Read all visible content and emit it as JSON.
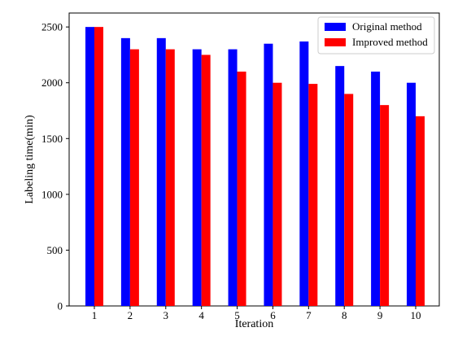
{
  "chart_data": {
    "type": "bar",
    "categories": [
      "1",
      "2",
      "3",
      "4",
      "5",
      "6",
      "7",
      "8",
      "9",
      "10"
    ],
    "series": [
      {
        "name": "Original method",
        "color": "#0000ff",
        "values": [
          2500,
          2400,
          2400,
          2300,
          2300,
          2350,
          2370,
          2150,
          2100,
          2000
        ]
      },
      {
        "name": "Improved method",
        "color": "#ff0000",
        "values": [
          2500,
          2300,
          2300,
          2250,
          2100,
          2000,
          1990,
          1900,
          1800,
          1700
        ]
      }
    ],
    "title": "",
    "xlabel": "Iteration",
    "ylabel": "Labeling time(min)",
    "ylim": [
      0,
      2625
    ],
    "yticks": [
      0,
      500,
      1000,
      1500,
      2000,
      2500
    ],
    "grid": false,
    "legend_position": "top-right"
  }
}
